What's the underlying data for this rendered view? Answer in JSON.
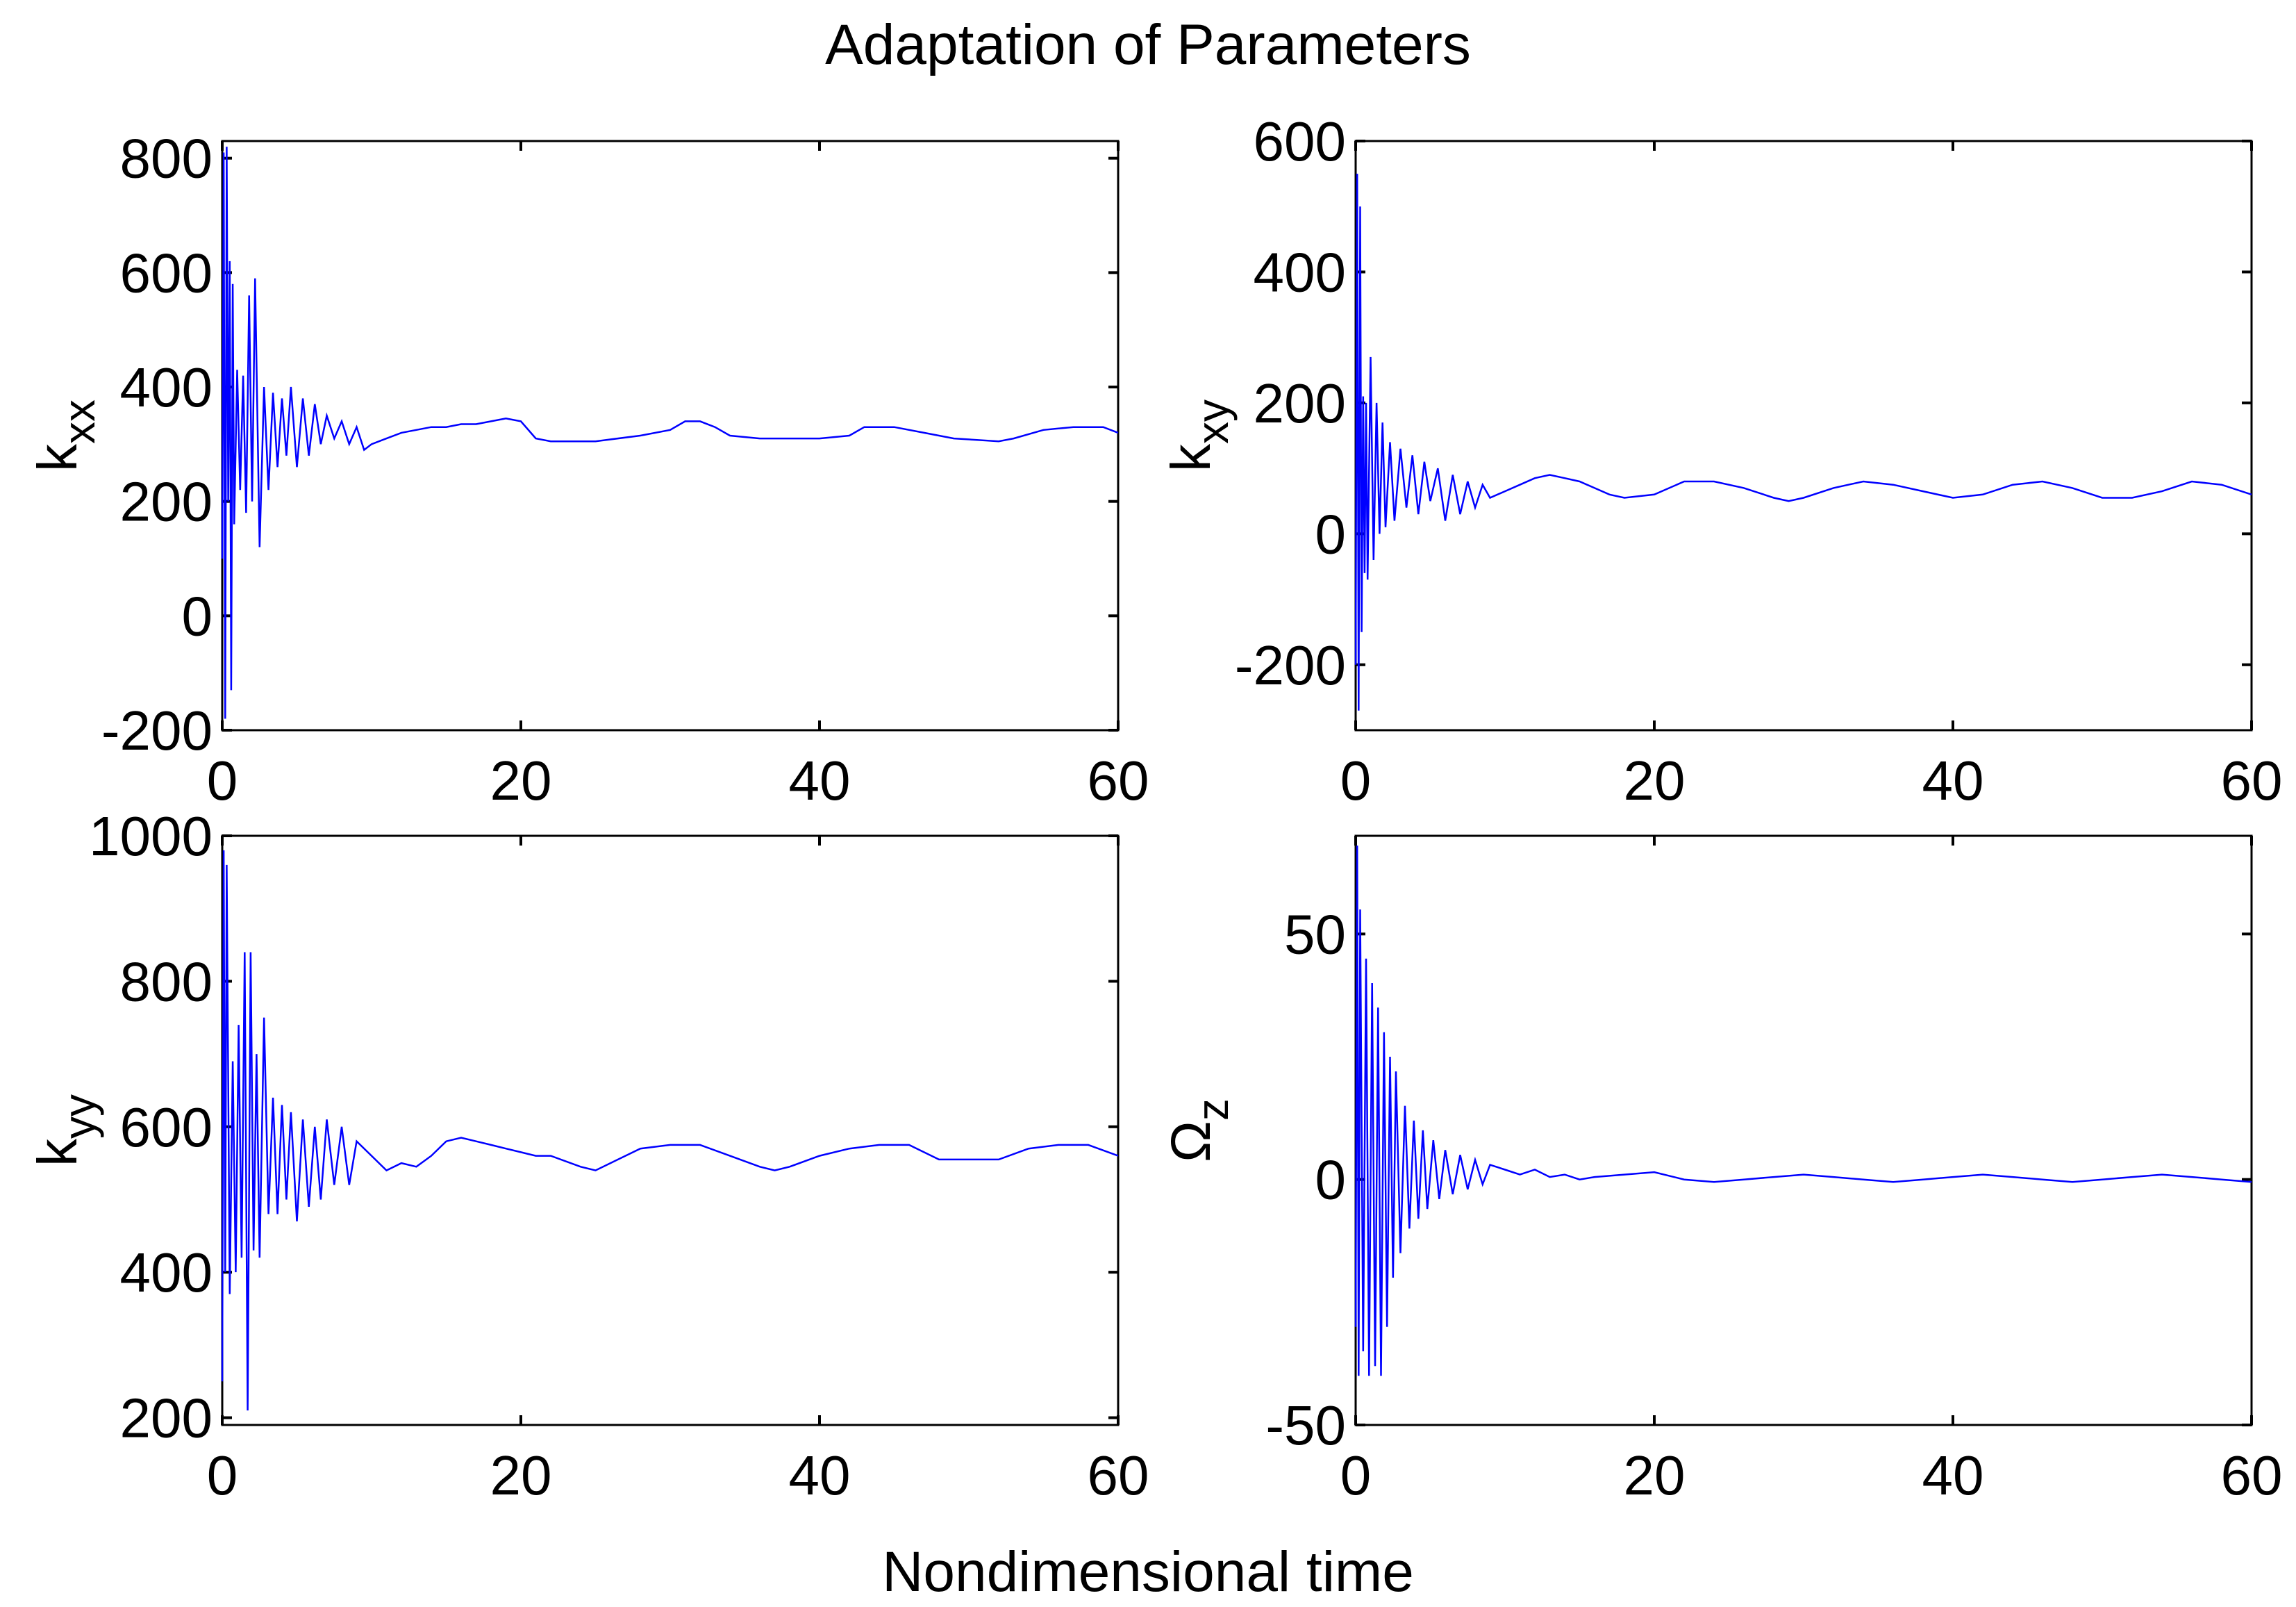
{
  "figure": {
    "title": "Adaptation of Parameters",
    "xlabel": "Nondimensional time"
  },
  "colors": {
    "line": "#0000ff",
    "axis": "#000000",
    "background": "#ffffff"
  },
  "chart_data": [
    {
      "type": "line",
      "ylabel_main": "k",
      "ylabel_sub": "xx",
      "xlim": [
        0,
        60
      ],
      "ylim": [
        -200,
        830
      ],
      "xticks": [
        0,
        20,
        40,
        60
      ],
      "yticks": [
        -200,
        0,
        200,
        400,
        600,
        800
      ],
      "xtick_labels": [
        "0",
        "20",
        "40",
        "60"
      ],
      "ytick_labels": [
        "-200",
        "0",
        "200",
        "400",
        "600",
        "800"
      ],
      "grid": false,
      "series": [
        {
          "name": "k_xx",
          "x": [
            0,
            0.1,
            0.2,
            0.3,
            0.4,
            0.5,
            0.6,
            0.7,
            0.8,
            1.0,
            1.2,
            1.4,
            1.6,
            1.8,
            2.0,
            2.2,
            2.5,
            2.8,
            3.1,
            3.4,
            3.7,
            4.0,
            4.3,
            4.6,
            5.0,
            5.4,
            5.8,
            6.2,
            6.6,
            7.0,
            7.5,
            8.0,
            8.5,
            9.0,
            9.5,
            10,
            11,
            12,
            13,
            14,
            15,
            16,
            17,
            18,
            19,
            20,
            21,
            22,
            25,
            28,
            30,
            31,
            32,
            33,
            34,
            36,
            38,
            40,
            42,
            43,
            45,
            47,
            49,
            52,
            53,
            55,
            57,
            59,
            60
          ],
          "y": [
            100,
            810,
            -180,
            820,
            200,
            620,
            -130,
            580,
            160,
            430,
            220,
            420,
            180,
            560,
            200,
            590,
            120,
            400,
            220,
            390,
            260,
            380,
            280,
            400,
            260,
            380,
            280,
            370,
            300,
            350,
            310,
            340,
            300,
            330,
            290,
            300,
            310,
            320,
            325,
            330,
            330,
            335,
            335,
            340,
            345,
            340,
            310,
            305,
            305,
            315,
            325,
            340,
            340,
            330,
            315,
            310,
            310,
            310,
            315,
            330,
            330,
            320,
            310,
            305,
            310,
            325,
            330,
            330,
            320
          ]
        }
      ]
    },
    {
      "type": "line",
      "ylabel_main": "k",
      "ylabel_sub": "xy",
      "xlim": [
        0,
        60
      ],
      "ylim": [
        -300,
        600
      ],
      "xticks": [
        0,
        20,
        40,
        60
      ],
      "yticks": [
        -200,
        0,
        200,
        400,
        600
      ],
      "xtick_labels": [
        "0",
        "20",
        "40",
        "60"
      ],
      "ytick_labels": [
        "-200",
        "0",
        "200",
        "400",
        "600"
      ],
      "grid": false,
      "series": [
        {
          "name": "k_xy",
          "x": [
            0,
            0.1,
            0.2,
            0.3,
            0.4,
            0.5,
            0.6,
            0.7,
            0.8,
            1.0,
            1.2,
            1.4,
            1.6,
            1.8,
            2.0,
            2.3,
            2.6,
            3.0,
            3.4,
            3.8,
            4.2,
            4.6,
            5.0,
            5.5,
            6.0,
            6.5,
            7.0,
            7.5,
            8.0,
            8.5,
            9.0,
            10,
            11,
            12,
            13,
            14,
            15,
            16,
            17,
            18,
            20,
            22,
            24,
            26,
            28,
            29,
            30,
            32,
            34,
            36,
            38,
            40,
            42,
            44,
            46,
            48,
            50,
            52,
            54,
            56,
            58,
            60
          ],
          "y": [
            -200,
            550,
            -270,
            500,
            -150,
            210,
            -60,
            200,
            -70,
            270,
            -40,
            200,
            0,
            170,
            10,
            140,
            20,
            130,
            40,
            120,
            30,
            110,
            50,
            100,
            20,
            90,
            30,
            80,
            40,
            75,
            55,
            65,
            75,
            85,
            90,
            85,
            80,
            70,
            60,
            55,
            60,
            80,
            80,
            70,
            55,
            50,
            55,
            70,
            80,
            75,
            65,
            55,
            60,
            75,
            80,
            70,
            55,
            55,
            65,
            80,
            75,
            60
          ]
        }
      ]
    },
    {
      "type": "line",
      "ylabel_main": "k",
      "ylabel_sub": "yy",
      "xlim": [
        0,
        60
      ],
      "ylim": [
        190,
        1000
      ],
      "xticks": [
        0,
        20,
        40,
        60
      ],
      "yticks": [
        200,
        400,
        600,
        800,
        1000
      ],
      "xtick_labels": [
        "0",
        "20",
        "40",
        "60"
      ],
      "ytick_labels": [
        "200",
        "400",
        "600",
        "800",
        "1000"
      ],
      "grid": false,
      "series": [
        {
          "name": "k_yy",
          "x": [
            0,
            0.1,
            0.2,
            0.3,
            0.5,
            0.7,
            0.9,
            1.1,
            1.3,
            1.5,
            1.7,
            1.9,
            2.1,
            2.3,
            2.5,
            2.8,
            3.1,
            3.4,
            3.7,
            4.0,
            4.3,
            4.6,
            5.0,
            5.4,
            5.8,
            6.2,
            6.6,
            7.0,
            7.5,
            8.0,
            8.5,
            9.0,
            10,
            11,
            12,
            13,
            14,
            15,
            16,
            17,
            18,
            19,
            20,
            21,
            22,
            24,
            25,
            26,
            28,
            30,
            32,
            34,
            36,
            37,
            38,
            40,
            42,
            44,
            46,
            47,
            48,
            50,
            52,
            54,
            56,
            58,
            60
          ],
          "y": [
            250,
            980,
            400,
            960,
            370,
            690,
            400,
            740,
            420,
            840,
            210,
            840,
            430,
            700,
            420,
            750,
            480,
            640,
            480,
            630,
            500,
            620,
            470,
            610,
            490,
            600,
            500,
            610,
            520,
            600,
            520,
            580,
            560,
            540,
            550,
            545,
            560,
            580,
            585,
            580,
            575,
            570,
            565,
            560,
            560,
            545,
            540,
            550,
            570,
            575,
            575,
            560,
            545,
            540,
            545,
            560,
            570,
            575,
            575,
            565,
            555,
            555,
            555,
            570,
            575,
            575,
            560
          ]
        }
      ]
    },
    {
      "type": "line",
      "ylabel_main": "Ω",
      "ylabel_sub": "z",
      "xlim": [
        0,
        60
      ],
      "ylim": [
        -50,
        70
      ],
      "xticks": [
        0,
        20,
        40,
        60
      ],
      "yticks": [
        -50,
        0,
        50
      ],
      "xtick_labels": [
        "0",
        "20",
        "40",
        "60"
      ],
      "ytick_labels": [
        "-50",
        "0",
        "50"
      ],
      "grid": false,
      "series": [
        {
          "name": "Omega_z",
          "x": [
            0,
            0.1,
            0.2,
            0.3,
            0.5,
            0.7,
            0.9,
            1.1,
            1.3,
            1.5,
            1.7,
            1.9,
            2.1,
            2.3,
            2.5,
            2.7,
            3.0,
            3.3,
            3.6,
            3.9,
            4.2,
            4.5,
            4.8,
            5.2,
            5.6,
            6.0,
            6.5,
            7.0,
            7.5,
            8.0,
            8.5,
            9.0,
            10,
            11,
            12,
            13,
            14,
            15,
            16,
            18,
            20,
            22,
            24,
            26,
            28,
            30,
            32,
            34,
            36,
            38,
            40,
            42,
            44,
            46,
            48,
            50,
            52,
            54,
            56,
            58,
            60
          ],
          "y": [
            -30,
            68,
            -40,
            55,
            -35,
            45,
            -40,
            40,
            -38,
            35,
            -40,
            30,
            -30,
            25,
            -20,
            22,
            -15,
            15,
            -10,
            12,
            -8,
            10,
            -6,
            8,
            -4,
            6,
            -3,
            5,
            -2,
            4,
            -1,
            3,
            2,
            1,
            2,
            0.5,
            1,
            0,
            0.5,
            1,
            1.5,
            0,
            -0.5,
            0,
            0.5,
            1,
            0.5,
            0,
            -0.5,
            0,
            0.5,
            1,
            0.5,
            0,
            -0.5,
            0,
            0.5,
            1,
            0.5,
            0,
            -0.5
          ]
        }
      ]
    }
  ]
}
